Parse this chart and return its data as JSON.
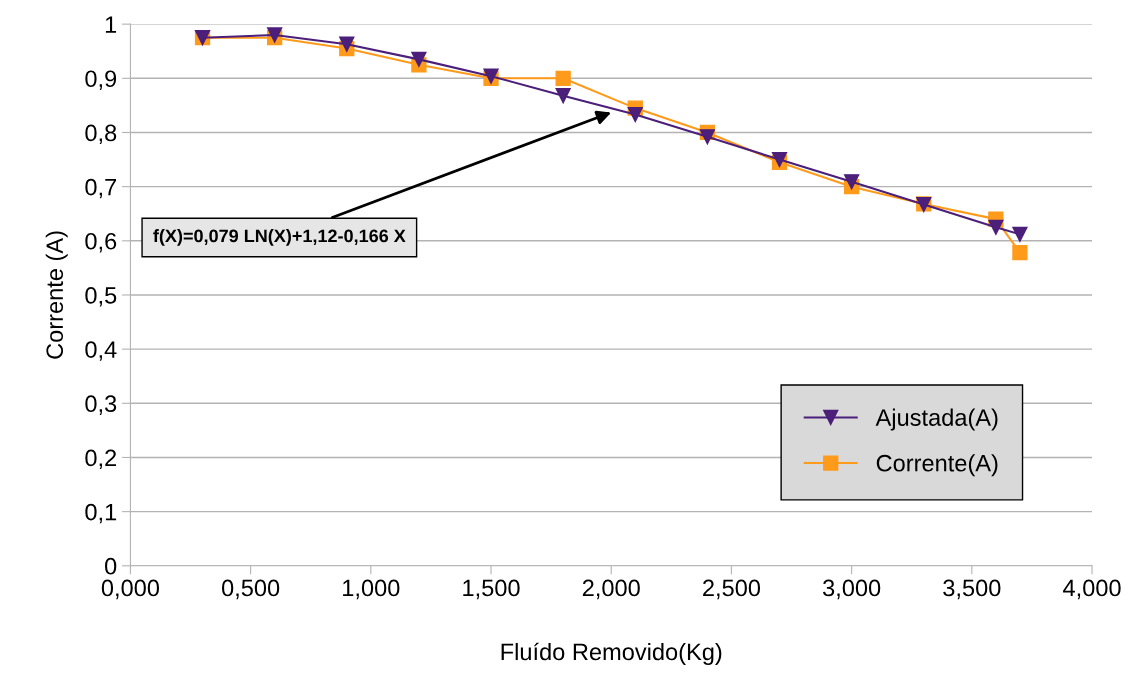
{
  "chart_data": {
    "type": "line",
    "xlabel": "Fluído Removido(Kg)",
    "ylabel": "Corrente (A)",
    "x": [
      0.3,
      0.6,
      0.9,
      1.2,
      1.5,
      1.8,
      2.1,
      2.4,
      2.7,
      3.0,
      3.3,
      3.6,
      3.7
    ],
    "series": [
      {
        "name": "Ajustada(A)",
        "color": "#4b1f7a",
        "marker": "triangle",
        "values": [
          0.975,
          0.98,
          0.963,
          0.935,
          0.904,
          0.868,
          0.833,
          0.792,
          0.75,
          0.709,
          0.667,
          0.625,
          0.612
        ]
      },
      {
        "name": "Corrente(A)",
        "color": "#ff9a1a",
        "marker": "square",
        "values": [
          0.975,
          0.975,
          0.955,
          0.925,
          0.9,
          0.9,
          0.845,
          0.8,
          0.745,
          0.7,
          0.668,
          0.64,
          0.578
        ]
      }
    ],
    "xlim": [
      0,
      4
    ],
    "xticks": [
      {
        "value": 0,
        "label": "0,000"
      },
      {
        "value": 0.5,
        "label": "0,500"
      },
      {
        "value": 1,
        "label": "1,000"
      },
      {
        "value": 1.5,
        "label": "1,500"
      },
      {
        "value": 2,
        "label": "2,000"
      },
      {
        "value": 2.5,
        "label": "2,500"
      },
      {
        "value": 3,
        "label": "3,000"
      },
      {
        "value": 3.5,
        "label": "3,500"
      },
      {
        "value": 4,
        "label": "4,000"
      }
    ],
    "ylim": [
      0,
      1
    ],
    "yticks": [
      0,
      {
        "value": 0.1,
        "label": "0,1"
      },
      {
        "value": 0.2,
        "label": "0,2"
      },
      {
        "value": 0.3,
        "label": "0,3"
      },
      {
        "value": 0.4,
        "label": "0,4"
      },
      {
        "value": 0.5,
        "label": "0,5"
      },
      {
        "value": 0.6,
        "label": "0,6"
      },
      {
        "value": 0.7,
        "label": "0,7"
      },
      {
        "value": 0.8,
        "label": "0,8"
      },
      {
        "value": 0.9,
        "label": "0,9"
      },
      1
    ],
    "grid": "y",
    "legend": "bottom right",
    "line_style": "solid",
    "annotations": [
      {
        "text": "f(X)=0,079 LN(X)+1,12-0,166 X",
        "x": 2.0,
        "y": 0.837
      }
    ]
  }
}
